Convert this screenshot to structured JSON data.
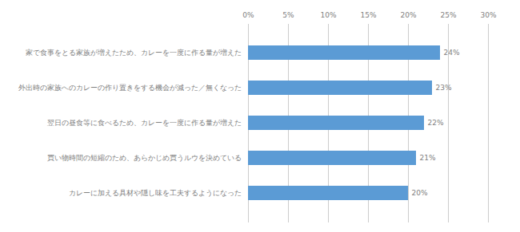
{
  "chart_data": {
    "type": "bar",
    "orientation": "horizontal",
    "categories": [
      "カレーに加える具材や隠し味を工夫するようになった",
      "買い物時間の短縮のため、あらかじめ買うルウを決めている",
      "翌日の昼食等に食べるため、カレーを一度に作る量が増えた",
      "外出時の家族へのカレーの作り置きをする機会が減った／無くなった",
      "家で食事をとる家族が増えたため、カレーを一度に作る量が増えた"
    ],
    "values": [
      20,
      21,
      22,
      23,
      24
    ],
    "value_labels": [
      "20%",
      "21%",
      "22%",
      "23%",
      "24%"
    ],
    "data_labels": true,
    "color": "#5b9bd5",
    "xlim": [
      0,
      30
    ],
    "xticks": [
      {
        "value": 0,
        "label": "0%"
      },
      {
        "value": 5,
        "label": "5%"
      },
      {
        "value": 10,
        "label": "10%"
      },
      {
        "value": 15,
        "label": "15%"
      },
      {
        "value": 20,
        "label": "20%"
      },
      {
        "value": 25,
        "label": "25%"
      },
      {
        "value": 30,
        "label": "30%"
      }
    ],
    "grid": true
  }
}
